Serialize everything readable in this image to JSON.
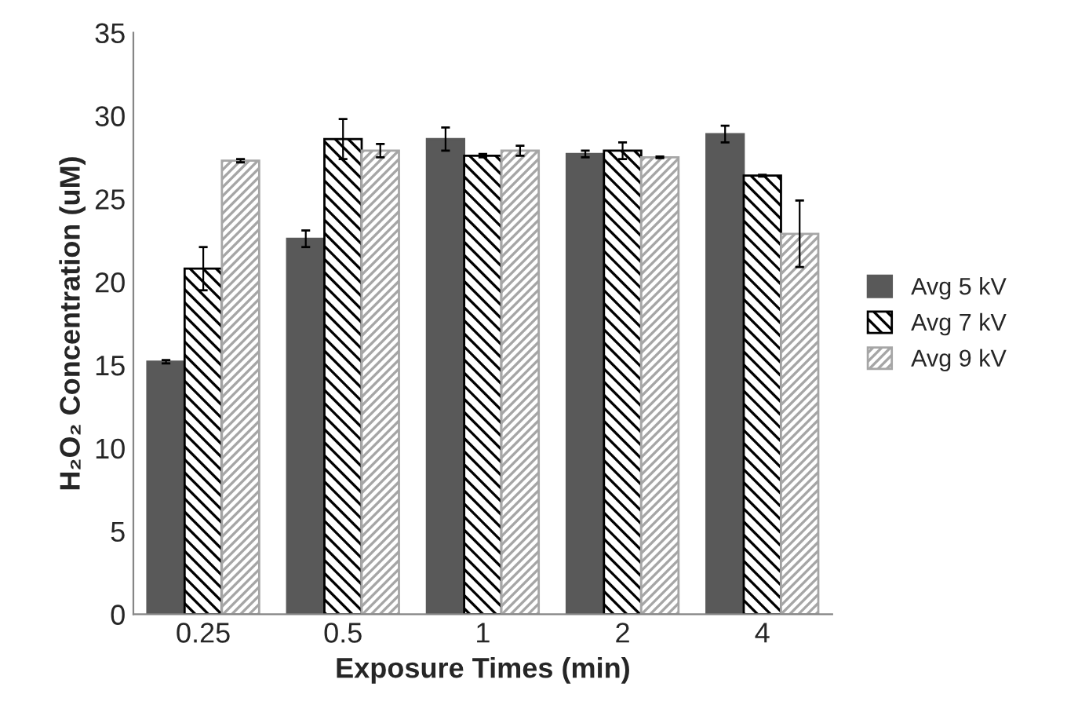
{
  "chart_data": {
    "type": "bar",
    "xlabel": "Exposure Times (min)",
    "ylabel": "H₂O₂ Concentration (uM)",
    "categories": [
      "0.25",
      "0.5",
      "1",
      "2",
      "4"
    ],
    "series": [
      {
        "name": "Avg 5 kV",
        "color": "#595959",
        "values": [
          15.2,
          22.6,
          28.6,
          27.7,
          28.9
        ],
        "errors": [
          0.1,
          0.5,
          0.7,
          0.2,
          0.5
        ]
      },
      {
        "name": "Avg 7 kV",
        "color": "#000000",
        "values": [
          20.8,
          28.6,
          27.6,
          27.9,
          26.4
        ],
        "errors": [
          1.3,
          1.2,
          0.1,
          0.5,
          0.05
        ]
      },
      {
        "name": "Avg 9 kV",
        "color": "#a6a6a6",
        "values": [
          27.3,
          27.9,
          27.9,
          27.5,
          22.9
        ],
        "errors": [
          0.1,
          0.4,
          0.3,
          0.05,
          2.0
        ]
      }
    ],
    "ylim": [
      0,
      35
    ],
    "yticks": [
      0,
      5,
      10,
      15,
      20,
      25,
      30,
      35
    ],
    "grid": false,
    "legend": "right"
  }
}
